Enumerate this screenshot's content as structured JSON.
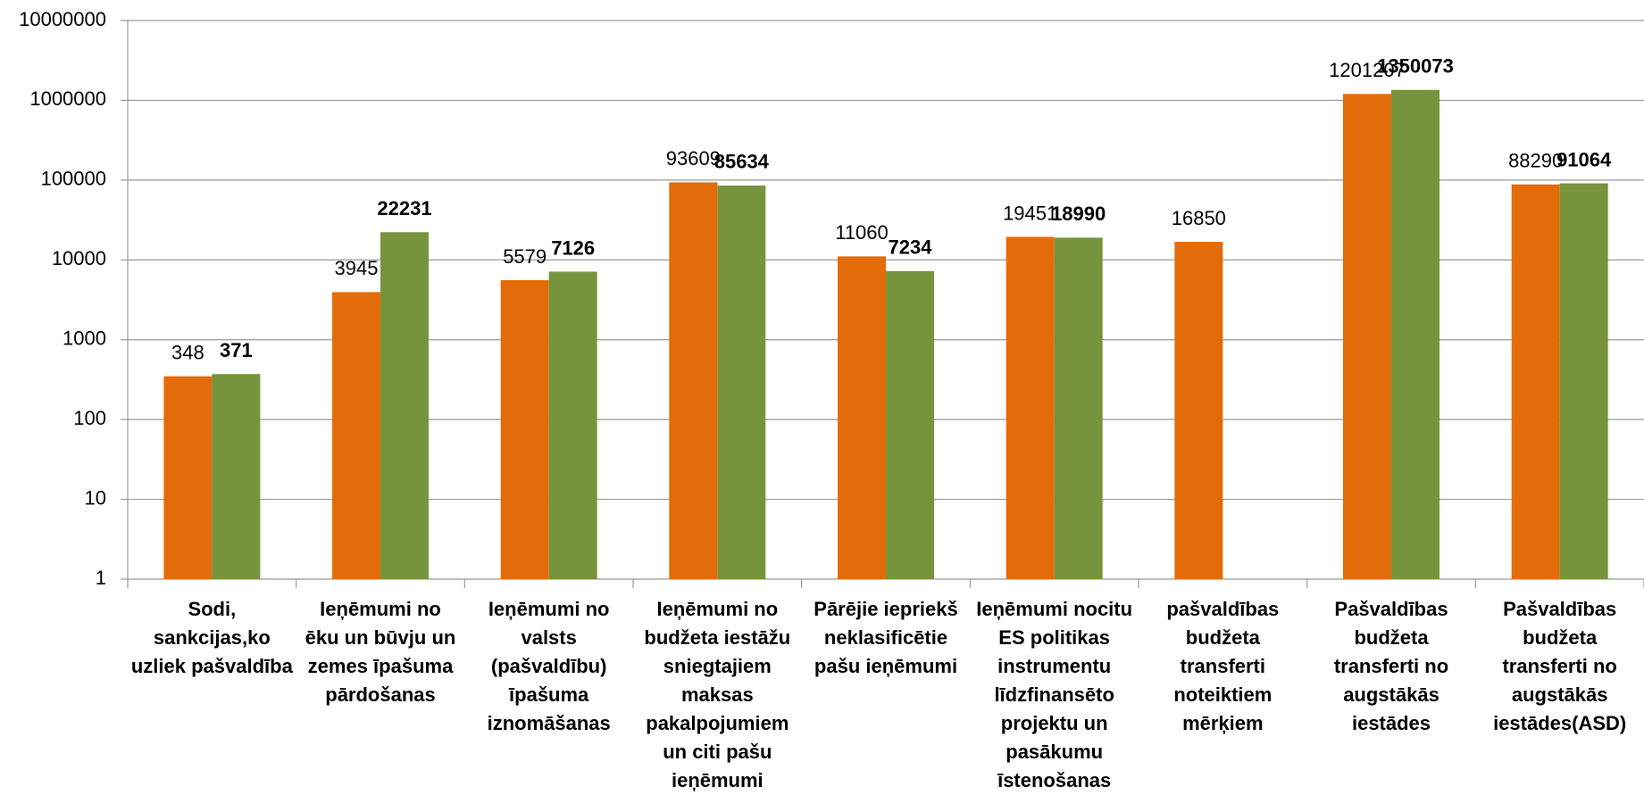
{
  "chart_data": {
    "type": "bar",
    "log_scale": true,
    "grid": true,
    "categories": [
      [
        "Sodi,",
        "sankcijas,ko",
        "uzliek pašvaldība"
      ],
      [
        "Ieņēmumi no",
        "ēku un būvju un",
        "zemes īpašuma",
        "pārdošanas"
      ],
      [
        "Ieņēmumi  no",
        "valsts",
        "(pašvaldību)",
        "īpašuma",
        "iznomāšanas"
      ],
      [
        "Ieņēmumi no",
        "budžeta iestāžu",
        "sniegtajiem",
        "maksas",
        "pakalpojumiem",
        "un citi pašu",
        "ieņēmumi"
      ],
      [
        "Pārējie iepriekš",
        "neklasificētie",
        "pašu ieņēmumi"
      ],
      [
        "Ieņēmumi nocitu",
        "ES politikas",
        "instrumentu",
        "līdzfinansēto",
        "projektu un",
        "pasākumu",
        "īstenošanas"
      ],
      [
        "pašvaldības",
        "budžeta",
        "transferti",
        "noteiktiem",
        "mērķiem"
      ],
      [
        "Pašvaldības",
        "budžeta",
        "transferti no",
        "augstākās",
        "iestādes"
      ],
      [
        "Pašvaldības",
        "budžeta",
        "transferti no",
        "augstākās",
        "iestādes(ASD)"
      ]
    ],
    "series": [
      {
        "color": "#e36c0a",
        "values": [
          348,
          3945,
          5579,
          93609,
          11060,
          19451,
          16850,
          1201207,
          88290
        ]
      },
      {
        "color": "#77933c",
        "values": [
          371,
          22231,
          7126,
          85634,
          7234,
          18990,
          null,
          1350073,
          91064
        ]
      }
    ],
    "ylim": [
      1,
      10000000
    ],
    "yticks": [
      1,
      10,
      100,
      1000,
      10000,
      100000,
      1000000,
      10000000
    ]
  }
}
